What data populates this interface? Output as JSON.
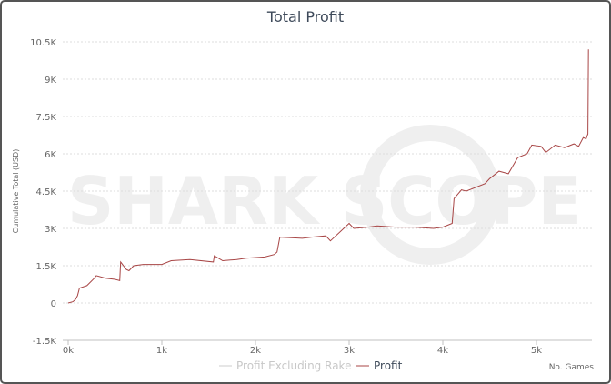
{
  "chart_data": {
    "type": "line",
    "title": "Total Profit",
    "xlabel": "No. Games",
    "ylabel": "Cumulative Total (USD)",
    "xlim": [
      0,
      5600
    ],
    "ylim": [
      -1500,
      10500
    ],
    "grid": true,
    "legend_position": "bottom",
    "x_ticks": [
      {
        "v": 0,
        "label": "0k"
      },
      {
        "v": 1000,
        "label": "1k"
      },
      {
        "v": 2000,
        "label": "2k"
      },
      {
        "v": 3000,
        "label": "3k"
      },
      {
        "v": 4000,
        "label": "4k"
      },
      {
        "v": 5000,
        "label": "5k"
      }
    ],
    "y_ticks": [
      {
        "v": -1500,
        "label": "-1.5K"
      },
      {
        "v": 0,
        "label": "0"
      },
      {
        "v": 1500,
        "label": "1.5K"
      },
      {
        "v": 3000,
        "label": "3K"
      },
      {
        "v": 4500,
        "label": "4.5K"
      },
      {
        "v": 6000,
        "label": "6K"
      },
      {
        "v": 7500,
        "label": "7.5K"
      },
      {
        "v": 9000,
        "label": "9K"
      },
      {
        "v": 10500,
        "label": "10.5K"
      }
    ],
    "series": [
      {
        "name": "Profit Excluding Rake",
        "color": "#cccccc",
        "visible": false,
        "x": [],
        "y": []
      },
      {
        "name": "Profit",
        "color": "#a84646",
        "visible": true,
        "x": [
          0,
          50,
          80,
          100,
          120,
          200,
          280,
          300,
          400,
          500,
          550,
          560,
          620,
          650,
          700,
          800,
          1000,
          1100,
          1300,
          1550,
          1560,
          1650,
          1800,
          1900,
          2100,
          2200,
          2230,
          2260,
          2500,
          2600,
          2750,
          2800,
          3000,
          3050,
          3200,
          3300,
          3500,
          3700,
          3900,
          4000,
          4100,
          4120,
          4200,
          4250,
          4450,
          4500,
          4600,
          4650,
          4700,
          4800,
          4900,
          4950,
          5050,
          5100,
          5200,
          5300,
          5400,
          5450,
          5500,
          5530,
          5550,
          5555
        ],
        "y": [
          0,
          50,
          150,
          300,
          600,
          700,
          1000,
          1100,
          1000,
          950,
          900,
          1650,
          1350,
          1300,
          1500,
          1550,
          1550,
          1700,
          1750,
          1650,
          1900,
          1700,
          1750,
          1800,
          1850,
          1950,
          2050,
          2650,
          2600,
          2650,
          2700,
          2500,
          3200,
          3000,
          3050,
          3100,
          3050,
          3050,
          3000,
          3050,
          3200,
          4200,
          4550,
          4500,
          4800,
          5000,
          5300,
          5250,
          5200,
          5850,
          6000,
          6350,
          6300,
          6050,
          6350,
          6250,
          6400,
          6300,
          6650,
          6600,
          6800,
          10200
        ]
      }
    ]
  },
  "watermark": "SHARK SCOPE"
}
